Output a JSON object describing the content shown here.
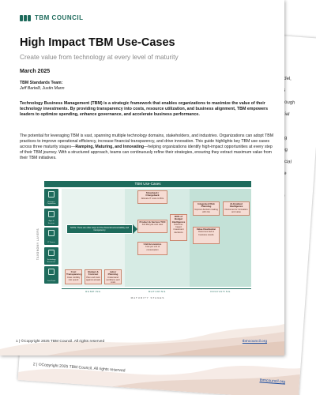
{
  "back_page": {
    "snippets": [
      "odel,",
      "es",
      "lthough",
      "initial",
      "on.",
      "pling",
      "aking",
      "inancial",
      "ource",
      "get",
      "roved",
      "bility",
      "and",
      "ks"
    ],
    "stray_text": "dynamically",
    "footer_left": "2  |  ©Copyright 2025 TBM Council. All rights reserved",
    "footer_link": "tbmcouncil.org"
  },
  "front_page": {
    "brand": "TBM COUNCIL",
    "title": "High Impact TBM Use-Cases",
    "subtitle": "Create value from technology at every level of maturity",
    "date": "March 2025",
    "team_label": "TBM Standards Team:",
    "team_names": "Jeff Bartelli, Justin Mann",
    "para1": "Technology Business Management (TBM) is a strategic framework that enables organizations to maximize the value of their technology investments. By providing transparency into costs, resource utilization, and business alignment, TBM empowers leaders to optimize spending, enhance governance, and accelerate business performance.",
    "para2_a": "The potential for leveraging TBM is vast, spanning multiple technology domains, stakeholders, and industries. Organizations can adopt TBM practices to improve operational efficiency, increase financial transparency, and drive innovation. This guide highlights key TBM use cases across three maturity stages—",
    "para2_bold": "Ramping, Maturing, and Innovating",
    "para2_b": "—helping organizations identify high-impact opportunities at every step of their TBM journey. With a structured approach, teams can continuously refine their strategies, ensuring they extract maximum value from their TBM initiatives.",
    "footer_left": "1  |  ©Copyright 2025 TBM Council. All rights reserved",
    "footer_link": "tbmcouncil.org"
  },
  "diagram": {
    "title": "TBM Use-Cases",
    "y_axis": "TAXONOMY LAYERS",
    "x_axis": "MATURITY STAGES",
    "row_labels": [
      "Business Capabilities",
      "Apps & Services",
      "IT Towers",
      "Technology Resources",
      "Cost Pools"
    ],
    "stages": [
      "RAMPING",
      "MATURING",
      "INNOVATING"
    ],
    "arrow_text": "NOTE: There are other ways to drive financial accountability and transparency",
    "use_cases": [
      {
        "title": "Showback / Chargeback",
        "desc": "Allocate IT costs to BUs"
      },
      {
        "title": "Product & Service TCO",
        "desc": "Full lifecycle cost view"
      },
      {
        "title": "Unit Economics",
        "desc": "Cost per unit of consumption"
      },
      {
        "title": "Cost Transparency",
        "desc": "Clear visibility into spend"
      },
      {
        "title": "Budget & Forecast",
        "desc": "Plan and track against actuals"
      },
      {
        "title": "Labor Planning",
        "desc": "Understand workforce and costs"
      },
      {
        "title": "BOS of Budget Intelligence",
        "desc": "Outcome-based investment decisions"
      },
      {
        "title": "Integrated Risk Planning",
        "desc": "Improve decision making with risk"
      },
      {
        "title": "Value Realization",
        "desc": "Outcomes tied to business results"
      },
      {
        "title": "AI-Enabled Intelligence",
        "desc": "Outcomes for innovation and value"
      }
    ]
  },
  "colors": {
    "brand_green": "#1e6b5c",
    "use_case_fill": "#f6dcd4",
    "link_blue": "#1f4fa0"
  }
}
